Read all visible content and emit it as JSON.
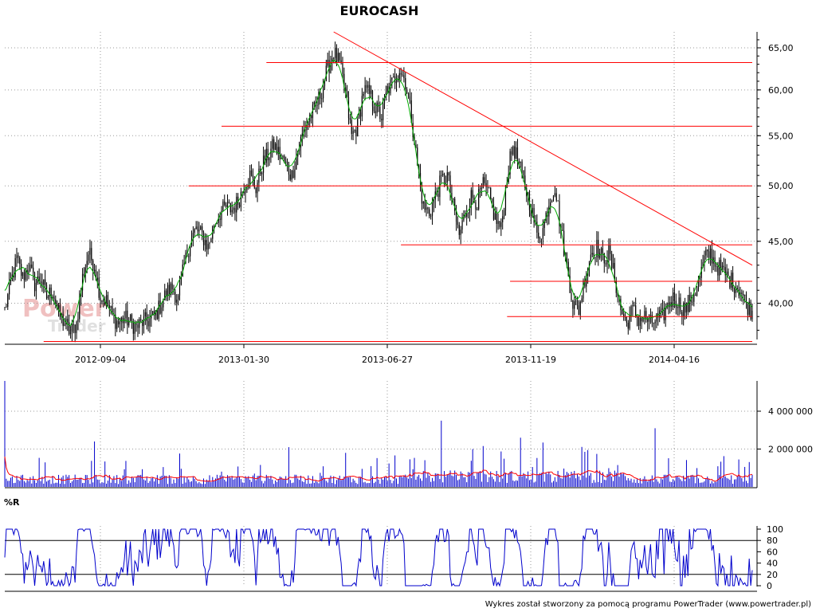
{
  "title": "EUROCASH",
  "footer": "Wykres został stworzony za pomocą programu PowerTrader (www.powertrader.pl)",
  "watermark": [
    "Power",
    "Trader"
  ],
  "colors": {
    "candle": "#000000",
    "ma_line": "#00aa00",
    "resistance": "#ff0000",
    "volume_bar": "#0000cc",
    "volume_avg": "#ff0000",
    "osc_line": "#0000cc",
    "grid": "#9a9a9a",
    "watermark": "#e8b0b0"
  },
  "chart_data": [
    {
      "type": "candlestick",
      "title": "EUROCASH",
      "x_ticks": [
        "2012-09-04",
        "2013-01-30",
        "2013-06-27",
        "2013-11-19",
        "2014-04-16"
      ],
      "y_ticks": [
        "40,00",
        "45,00",
        "50,00",
        "55,00",
        "60,00",
        "65,00"
      ],
      "y_range": [
        37,
        67
      ],
      "y_scale": "log",
      "grid": true,
      "price_path": [
        [
          0,
          39.5
        ],
        [
          4,
          41.5
        ],
        [
          8,
          43.5
        ],
        [
          12,
          42.0
        ],
        [
          16,
          43.0
        ],
        [
          20,
          41.5
        ],
        [
          24,
          42.0
        ],
        [
          28,
          40.5
        ],
        [
          32,
          41.0
        ],
        [
          36,
          39.2
        ],
        [
          40,
          38.5
        ],
        [
          44,
          37.8
        ],
        [
          48,
          38.5
        ],
        [
          52,
          42.0
        ],
        [
          56,
          44.0
        ],
        [
          60,
          43.0
        ],
        [
          64,
          40.5
        ],
        [
          68,
          40.2
        ],
        [
          72,
          39.0
        ],
        [
          76,
          38.5
        ],
        [
          80,
          38.9
        ],
        [
          84,
          38.6
        ],
        [
          88,
          38.2
        ],
        [
          92,
          38.6
        ],
        [
          96,
          38.7
        ],
        [
          100,
          39.0
        ],
        [
          104,
          39.8
        ],
        [
          108,
          40.8
        ],
        [
          112,
          41.2
        ],
        [
          116,
          40.3
        ],
        [
          120,
          43.0
        ],
        [
          124,
          45.0
        ],
        [
          128,
          46.0
        ],
        [
          132,
          45.5
        ],
        [
          136,
          44.5
        ],
        [
          140,
          46.5
        ],
        [
          144,
          47.5
        ],
        [
          148,
          48.0
        ],
        [
          152,
          47.8
        ],
        [
          156,
          48.5
        ],
        [
          160,
          50.0
        ],
        [
          164,
          51.0
        ],
        [
          168,
          49.8
        ],
        [
          172,
          52.0
        ],
        [
          176,
          53.0
        ],
        [
          180,
          54.0
        ],
        [
          184,
          53.0
        ],
        [
          188,
          52.0
        ],
        [
          192,
          51.0
        ],
        [
          196,
          53.5
        ],
        [
          200,
          55.5
        ],
        [
          204,
          57.0
        ],
        [
          208,
          58.0
        ],
        [
          212,
          60.0
        ],
        [
          216,
          62.5
        ],
        [
          220,
          64.5
        ],
        [
          224,
          63.0
        ],
        [
          228,
          59.5
        ],
        [
          232,
          55.0
        ],
        [
          236,
          56.0
        ],
        [
          240,
          60.0
        ],
        [
          244,
          59.5
        ],
        [
          248,
          58.0
        ],
        [
          252,
          57.0
        ],
        [
          256,
          60.0
        ],
        [
          260,
          61.0
        ],
        [
          264,
          62.5
        ],
        [
          268,
          61.0
        ],
        [
          272,
          57.0
        ],
        [
          276,
          52.0
        ],
        [
          280,
          48.0
        ],
        [
          284,
          47.5
        ],
        [
          288,
          49.0
        ],
        [
          292,
          50.5
        ],
        [
          296,
          51.0
        ],
        [
          300,
          48.0
        ],
        [
          304,
          45.5
        ],
        [
          308,
          47.5
        ],
        [
          312,
          49.0
        ],
        [
          316,
          48.5
        ],
        [
          320,
          50.0
        ],
        [
          324,
          49.0
        ],
        [
          328,
          47.0
        ],
        [
          332,
          46.0
        ],
        [
          336,
          51.0
        ],
        [
          340,
          54.0
        ],
        [
          344,
          52.0
        ],
        [
          348,
          50.0
        ],
        [
          352,
          48.0
        ],
        [
          356,
          45.5
        ],
        [
          360,
          46.0
        ],
        [
          364,
          48.5
        ],
        [
          368,
          50.0
        ],
        [
          372,
          46.0
        ],
        [
          376,
          43.0
        ],
        [
          380,
          40.0
        ],
        [
          384,
          39.5
        ],
        [
          388,
          42.0
        ],
        [
          392,
          44.0
        ],
        [
          396,
          44.5
        ],
        [
          400,
          43.5
        ],
        [
          404,
          44.0
        ],
        [
          408,
          42.0
        ],
        [
          412,
          39.5
        ],
        [
          416,
          38.5
        ],
        [
          420,
          39.5
        ],
        [
          424,
          38.8
        ],
        [
          428,
          39.0
        ],
        [
          432,
          38.5
        ],
        [
          436,
          38.8
        ],
        [
          440,
          39.0
        ],
        [
          444,
          40.0
        ],
        [
          448,
          40.5
        ],
        [
          452,
          39.8
        ],
        [
          456,
          39.5
        ],
        [
          460,
          40.5
        ],
        [
          464,
          41.5
        ],
        [
          468,
          43.5
        ],
        [
          472,
          44.0
        ],
        [
          476,
          43.0
        ],
        [
          480,
          42.5
        ],
        [
          484,
          42.0
        ],
        [
          488,
          41.5
        ],
        [
          492,
          41.0
        ],
        [
          496,
          40.0
        ],
        [
          500,
          39.3
        ]
      ],
      "moving_average": "green line following price",
      "trendlines": [
        {
          "label": "downtrend",
          "from": [
            220,
            67.0
          ],
          "to": [
            500,
            43.0
          ]
        },
        {
          "label": "level",
          "y": 63.2,
          "from_x": 175,
          "to_x": 500
        },
        {
          "label": "level",
          "y": 56.0,
          "from_x": 145,
          "to_x": 500
        },
        {
          "label": "level",
          "y": 50.0,
          "from_x": 123,
          "to_x": 500
        },
        {
          "label": "level",
          "y": 44.7,
          "from_x": 265,
          "to_x": 500
        },
        {
          "label": "level",
          "y": 41.7,
          "from_x": 338,
          "to_x": 500
        },
        {
          "label": "level",
          "y": 39.0,
          "from_x": 336,
          "to_x": 500
        },
        {
          "label": "level",
          "y": 37.2,
          "from_x": 26,
          "to_x": 500
        }
      ]
    },
    {
      "type": "bar",
      "title": "",
      "y_ticks": [
        "2 000 000",
        "4 000 000"
      ],
      "y_range": [
        0,
        5600000
      ],
      "grid": true,
      "notable_spikes": [
        {
          "x": 0,
          "value": 5600000
        },
        {
          "x": 60,
          "value": 2400000
        },
        {
          "x": 190,
          "value": 2100000
        },
        {
          "x": 228,
          "value": 1800000
        },
        {
          "x": 292,
          "value": 3500000
        },
        {
          "x": 345,
          "value": 2600000
        },
        {
          "x": 435,
          "value": 3100000
        }
      ],
      "series": [
        {
          "type": "bar"
        },
        {
          "type": "moving-average line"
        }
      ]
    },
    {
      "type": "line",
      "title": "%R",
      "y_ticks": [
        "0",
        "20",
        "40",
        "60",
        "80",
        "100"
      ],
      "y_range": [
        0,
        100
      ],
      "reference_lines": [
        20,
        80
      ],
      "grid": true
    }
  ]
}
